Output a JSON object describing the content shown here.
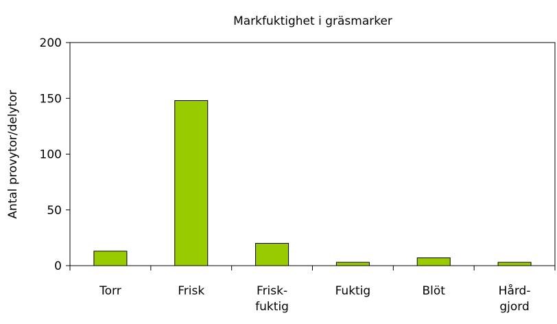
{
  "chart_data": {
    "type": "bar",
    "title": "Markfuktighet i gräsmarker",
    "y_label": "Antal provytor/delytor",
    "categories": [
      "Torr",
      "Frisk",
      "Frisk-\nfuktig",
      "Fuktig",
      "Blöt",
      "Hård-\ngjord"
    ],
    "values": [
      13,
      148,
      20,
      3,
      7,
      3
    ],
    "color": "#99cc00",
    "ylim": [
      0,
      200
    ],
    "yticks": [
      0,
      50,
      100,
      150,
      200
    ],
    "grid": false
  }
}
